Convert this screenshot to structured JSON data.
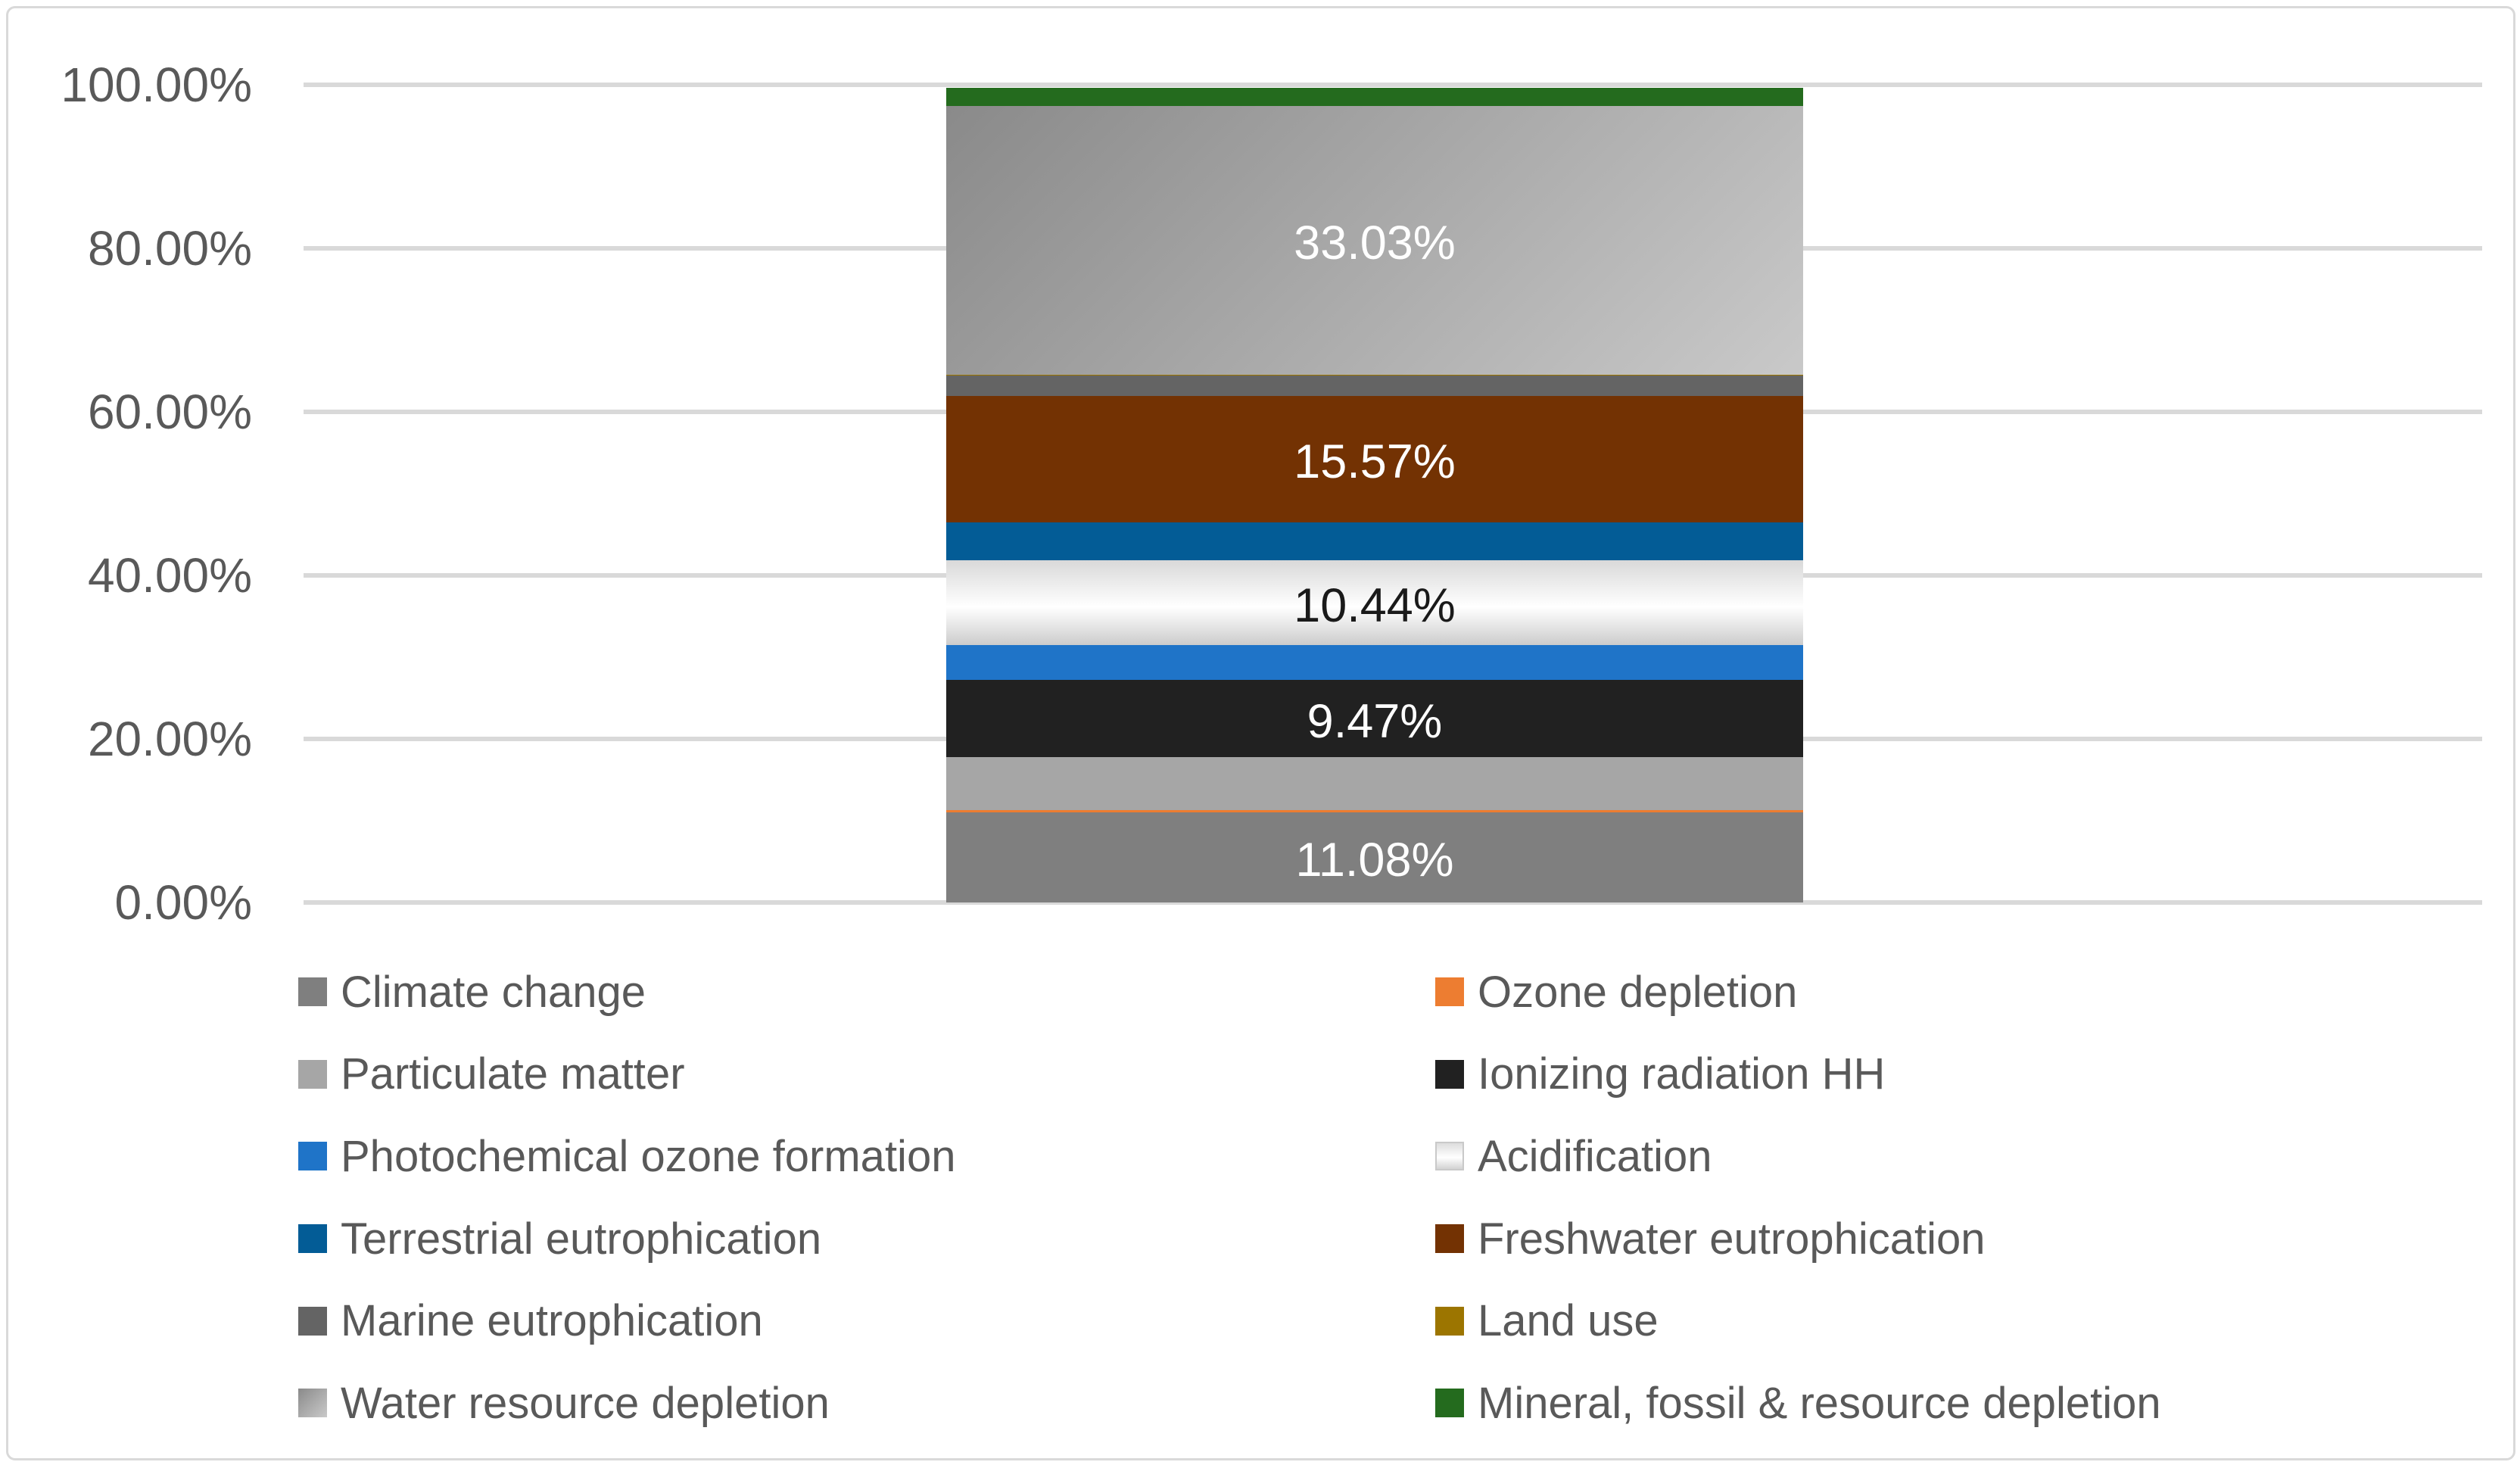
{
  "chart": {
    "background": "#FFFFFF",
    "border_color": "#D9D9D9",
    "grid_color": "#D9D9D9",
    "axis_label_color": "#595959",
    "legend_text_color": "#595959"
  },
  "chart_data": {
    "type": "bar",
    "subtype": "100% stacked column, single category",
    "title": "",
    "categories": [
      ""
    ],
    "xlabel": "",
    "ylabel": "",
    "ylim": [
      0,
      100
    ],
    "y_tick_labels": [
      "100.00%",
      "80.00%",
      "60.00%",
      "40.00%",
      "20.00%",
      "0.00%"
    ],
    "grid": "horizontal",
    "legend_position": "bottom, two columns",
    "stack_order": "bottom to top",
    "series": [
      {
        "name": "Climate change",
        "value": 11.08,
        "color": "#7F7F7F",
        "data_label": "11.08%",
        "label_color": "#FFFFFF"
      },
      {
        "name": "Ozone depletion",
        "value": 0.24,
        "color": "#ED7D31",
        "data_label": "",
        "label_color": ""
      },
      {
        "name": "Particulate matter",
        "value": 6.55,
        "color": "#A6A6A6",
        "data_label": "",
        "label_color": ""
      },
      {
        "name": "Ionizing radiation HH",
        "value": 9.47,
        "color": "#212121",
        "data_label": "9.47%",
        "label_color": "#FFFFFF"
      },
      {
        "name": "Photochemical ozone formation",
        "value": 4.26,
        "color": "#1F74C8",
        "data_label": "",
        "label_color": ""
      },
      {
        "name": "Acidification",
        "value": 10.44,
        "color": "#F5F5F5",
        "gradient": [
          "#D9D9D9",
          "#FFFFFF",
          "#CCCCCC"
        ],
        "gradient_dir": "180deg",
        "swatch_border": "#C9C9C9",
        "data_label": "10.44%",
        "label_color": "#1A1A1A"
      },
      {
        "name": "Terrestrial eutrophication",
        "value": 4.6,
        "color": "#035C96",
        "data_label": "",
        "label_color": ""
      },
      {
        "name": "Freshwater eutrophication",
        "value": 15.57,
        "color": "#733203",
        "data_label": "15.57%",
        "label_color": "#FFFFFF"
      },
      {
        "name": "Marine eutrophication",
        "value": 2.56,
        "color": "#646464",
        "data_label": "",
        "label_color": ""
      },
      {
        "name": "Land use",
        "value": 0.02,
        "color": "#9C7500",
        "data_label": "",
        "label_color": ""
      },
      {
        "name": "Water resource depletion",
        "value": 33.03,
        "color": "#A9A9A9",
        "gradient": [
          "#8A8A8A",
          "#C9C9C9"
        ],
        "gradient_dir": "135deg",
        "data_label": "33.03%",
        "label_color": "#FFFFFF"
      },
      {
        "name": "Mineral, fossil & resource depletion",
        "value": 2.18,
        "color": "#246B1E",
        "data_label": "",
        "label_color": ""
      }
    ]
  }
}
